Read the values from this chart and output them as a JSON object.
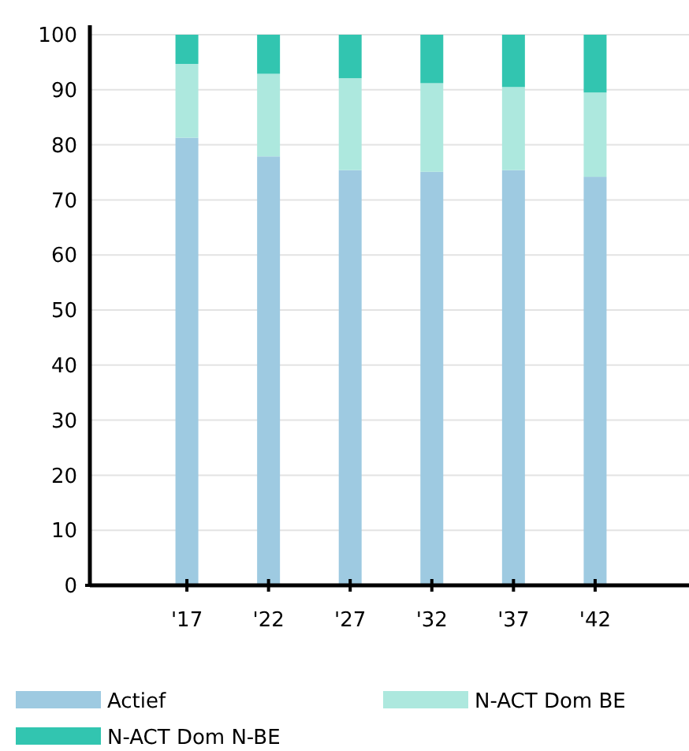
{
  "chart_data": {
    "type": "bar",
    "stacked": true,
    "categories": [
      "'17",
      "'22",
      "'27",
      "'32",
      "'37",
      "'42"
    ],
    "series": [
      {
        "name": "Actief",
        "color": "#9ecae1",
        "values": [
          81.3,
          77.9,
          75.4,
          75.1,
          75.4,
          74.2
        ]
      },
      {
        "name": "N-ACT Dom BE",
        "color": "#ade8de",
        "values": [
          13.4,
          15.0,
          16.7,
          16.1,
          15.1,
          15.3
        ]
      },
      {
        "name": "N-ACT Dom N-BE",
        "color": "#32c5b0",
        "values": [
          5.3,
          7.1,
          7.9,
          8.8,
          9.5,
          10.5
        ]
      }
    ],
    "ylim": [
      0,
      100
    ],
    "yticks": [
      0,
      10,
      20,
      30,
      40,
      50,
      60,
      70,
      80,
      90,
      100
    ],
    "grid": "y",
    "legend": "bottom"
  }
}
